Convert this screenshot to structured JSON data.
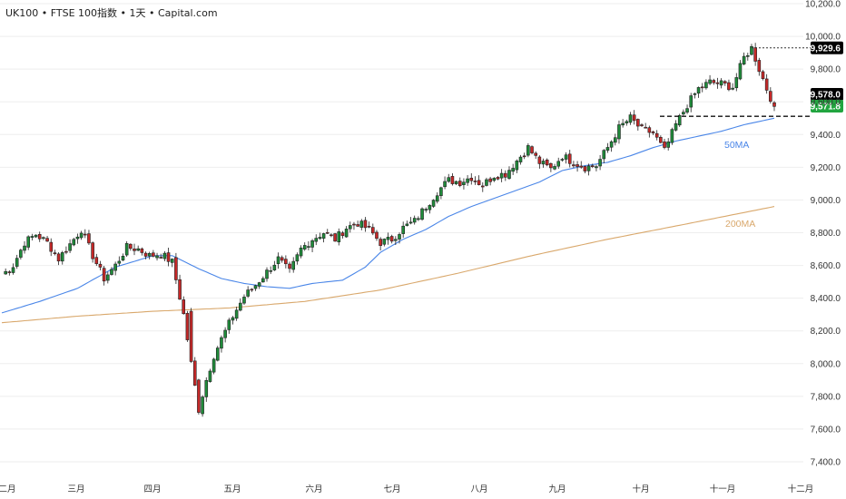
{
  "header": {
    "title": "UK100 • FTSE 100指数 • 1天 • Capital.com"
  },
  "chart_data": {
    "type": "candlestick",
    "y_axis": {
      "ticks": [
        "10,200.0",
        "10,000.0",
        "9,800.0",
        "9,600.0",
        "9,400.0",
        "9,200.0",
        "9,000.0",
        "8,800.0",
        "8,600.0",
        "8,400.0",
        "8,200.0",
        "8,000.0",
        "7,800.0",
        "7,600.0",
        "7,400.0"
      ],
      "range": [
        7350,
        10230
      ],
      "position": "right"
    },
    "x_axis": {
      "ticks": [
        "二月",
        "三月",
        "四月",
        "五月",
        "六月",
        "七月",
        "八月",
        "九月",
        "十月",
        "十一月",
        "十二月"
      ]
    },
    "price_levels": [
      {
        "value": 9929.6,
        "label": "9,929.6",
        "style": "dotted",
        "tag_bg": "#000000",
        "tag_fg": "#ffffff"
      },
      {
        "value": 9578.0,
        "label": "9,578.0",
        "style": "dashed",
        "tag_bg": "#000000",
        "tag_fg": "#ffffff"
      },
      {
        "value": 9571.8,
        "label": "9,571.8",
        "style": "none",
        "tag_bg": "#22a540",
        "tag_fg": "#ffffff"
      }
    ],
    "moving_averages": [
      {
        "name": "50MA",
        "color": "#4a86e8"
      },
      {
        "name": "200MA",
        "color": "#d9a86c"
      }
    ],
    "colors": {
      "up": "#1f8b3a",
      "down": "#c62828",
      "grid": "#eeeeee"
    },
    "close_anchors": [
      [
        0,
        8540
      ],
      [
        3,
        8600
      ],
      [
        6,
        8740
      ],
      [
        9,
        8790
      ],
      [
        12,
        8740
      ],
      [
        15,
        8640
      ],
      [
        18,
        8730
      ],
      [
        21,
        8820
      ],
      [
        24,
        8660
      ],
      [
        27,
        8520
      ],
      [
        30,
        8600
      ],
      [
        33,
        8710
      ],
      [
        36,
        8700
      ],
      [
        39,
        8660
      ],
      [
        42,
        8670
      ],
      [
        45,
        8620
      ],
      [
        48,
        8300
      ],
      [
        50,
        8000
      ],
      [
        52,
        7720
      ],
      [
        54,
        7900
      ],
      [
        56,
        8050
      ],
      [
        58,
        8150
      ],
      [
        61,
        8290
      ],
      [
        64,
        8410
      ],
      [
        67,
        8480
      ],
      [
        70,
        8560
      ],
      [
        73,
        8640
      ],
      [
        76,
        8560
      ],
      [
        79,
        8700
      ],
      [
        82,
        8760
      ],
      [
        85,
        8800
      ],
      [
        88,
        8760
      ],
      [
        91,
        8830
      ],
      [
        94,
        8860
      ],
      [
        97,
        8820
      ],
      [
        100,
        8740
      ],
      [
        103,
        8760
      ],
      [
        106,
        8830
      ],
      [
        109,
        8870
      ],
      [
        112,
        8960
      ],
      [
        115,
        9050
      ],
      [
        118,
        9120
      ],
      [
        121,
        9110
      ],
      [
        124,
        9140
      ],
      [
        127,
        9090
      ],
      [
        130,
        9150
      ],
      [
        133,
        9160
      ],
      [
        136,
        9240
      ],
      [
        139,
        9320
      ],
      [
        142,
        9230
      ],
      [
        145,
        9190
      ],
      [
        148,
        9270
      ],
      [
        151,
        9230
      ],
      [
        154,
        9200
      ],
      [
        157,
        9210
      ],
      [
        160,
        9320
      ],
      [
        163,
        9440
      ],
      [
        166,
        9500
      ],
      [
        169,
        9430
      ],
      [
        172,
        9410
      ],
      [
        175,
        9300
      ],
      [
        178,
        9460
      ],
      [
        181,
        9580
      ],
      [
        184,
        9680
      ],
      [
        187,
        9720
      ],
      [
        190,
        9710
      ],
      [
        193,
        9690
      ],
      [
        196,
        9870
      ],
      [
        198,
        9929
      ],
      [
        200,
        9800
      ],
      [
        202,
        9680
      ],
      [
        204,
        9574
      ]
    ],
    "ma50_anchors": [
      [
        0,
        8310
      ],
      [
        10,
        8380
      ],
      [
        20,
        8460
      ],
      [
        30,
        8590
      ],
      [
        40,
        8660
      ],
      [
        45,
        8660
      ],
      [
        52,
        8580
      ],
      [
        58,
        8520
      ],
      [
        64,
        8490
      ],
      [
        70,
        8470
      ],
      [
        76,
        8460
      ],
      [
        82,
        8490
      ],
      [
        90,
        8510
      ],
      [
        96,
        8590
      ],
      [
        100,
        8680
      ],
      [
        106,
        8760
      ],
      [
        112,
        8820
      ],
      [
        118,
        8900
      ],
      [
        124,
        8960
      ],
      [
        130,
        9010
      ],
      [
        136,
        9060
      ],
      [
        142,
        9110
      ],
      [
        148,
        9180
      ],
      [
        154,
        9210
      ],
      [
        160,
        9230
      ],
      [
        166,
        9270
      ],
      [
        172,
        9320
      ],
      [
        178,
        9360
      ],
      [
        184,
        9390
      ],
      [
        190,
        9420
      ],
      [
        196,
        9460
      ],
      [
        204,
        9500
      ]
    ],
    "ma200_anchors": [
      [
        0,
        8250
      ],
      [
        20,
        8290
      ],
      [
        40,
        8320
      ],
      [
        60,
        8340
      ],
      [
        80,
        8380
      ],
      [
        100,
        8450
      ],
      [
        120,
        8550
      ],
      [
        140,
        8660
      ],
      [
        160,
        8760
      ],
      [
        180,
        8850
      ],
      [
        204,
        8960
      ]
    ]
  }
}
